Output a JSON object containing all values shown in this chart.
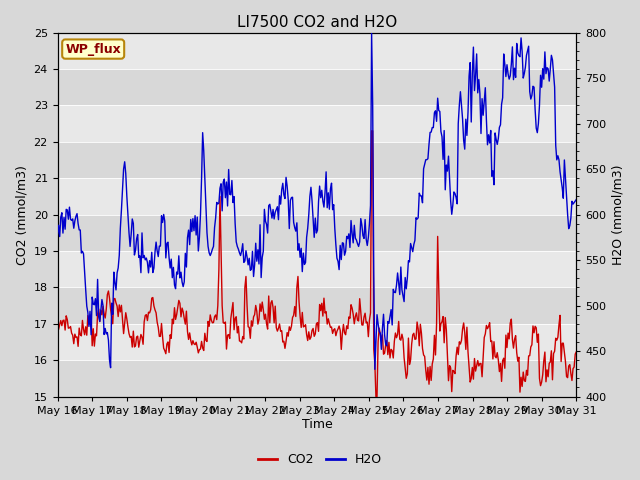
{
  "title": "LI7500 CO2 and H2O",
  "xlabel": "Time",
  "ylabel_left": "CO2 (mmol/m3)",
  "ylabel_right": "H2O (mmol/m3)",
  "annotation": "WP_flux",
  "co2_ylim": [
    15.0,
    25.0
  ],
  "h2o_ylim": [
    400,
    800
  ],
  "co2_yticks": [
    15.0,
    16.0,
    17.0,
    18.0,
    19.0,
    20.0,
    21.0,
    22.0,
    23.0,
    24.0,
    25.0
  ],
  "h2o_yticks": [
    400,
    450,
    500,
    550,
    600,
    650,
    700,
    750,
    800
  ],
  "legend_labels": [
    "CO2",
    "H2O"
  ],
  "co2_color": "#cc0000",
  "h2o_color": "#0000cc",
  "fig_bg_color": "#d8d8d8",
  "axes_bg_color": "#e8e8e8",
  "band_colors": [
    "#d8d8d8",
    "#e8e8e8"
  ],
  "grid_color": "#c8c8c8",
  "title_fontsize": 11,
  "axis_label_fontsize": 9,
  "tick_fontsize": 8,
  "annotation_fontsize": 9,
  "legend_fontsize": 9,
  "n_points": 480,
  "linewidth": 1.0
}
